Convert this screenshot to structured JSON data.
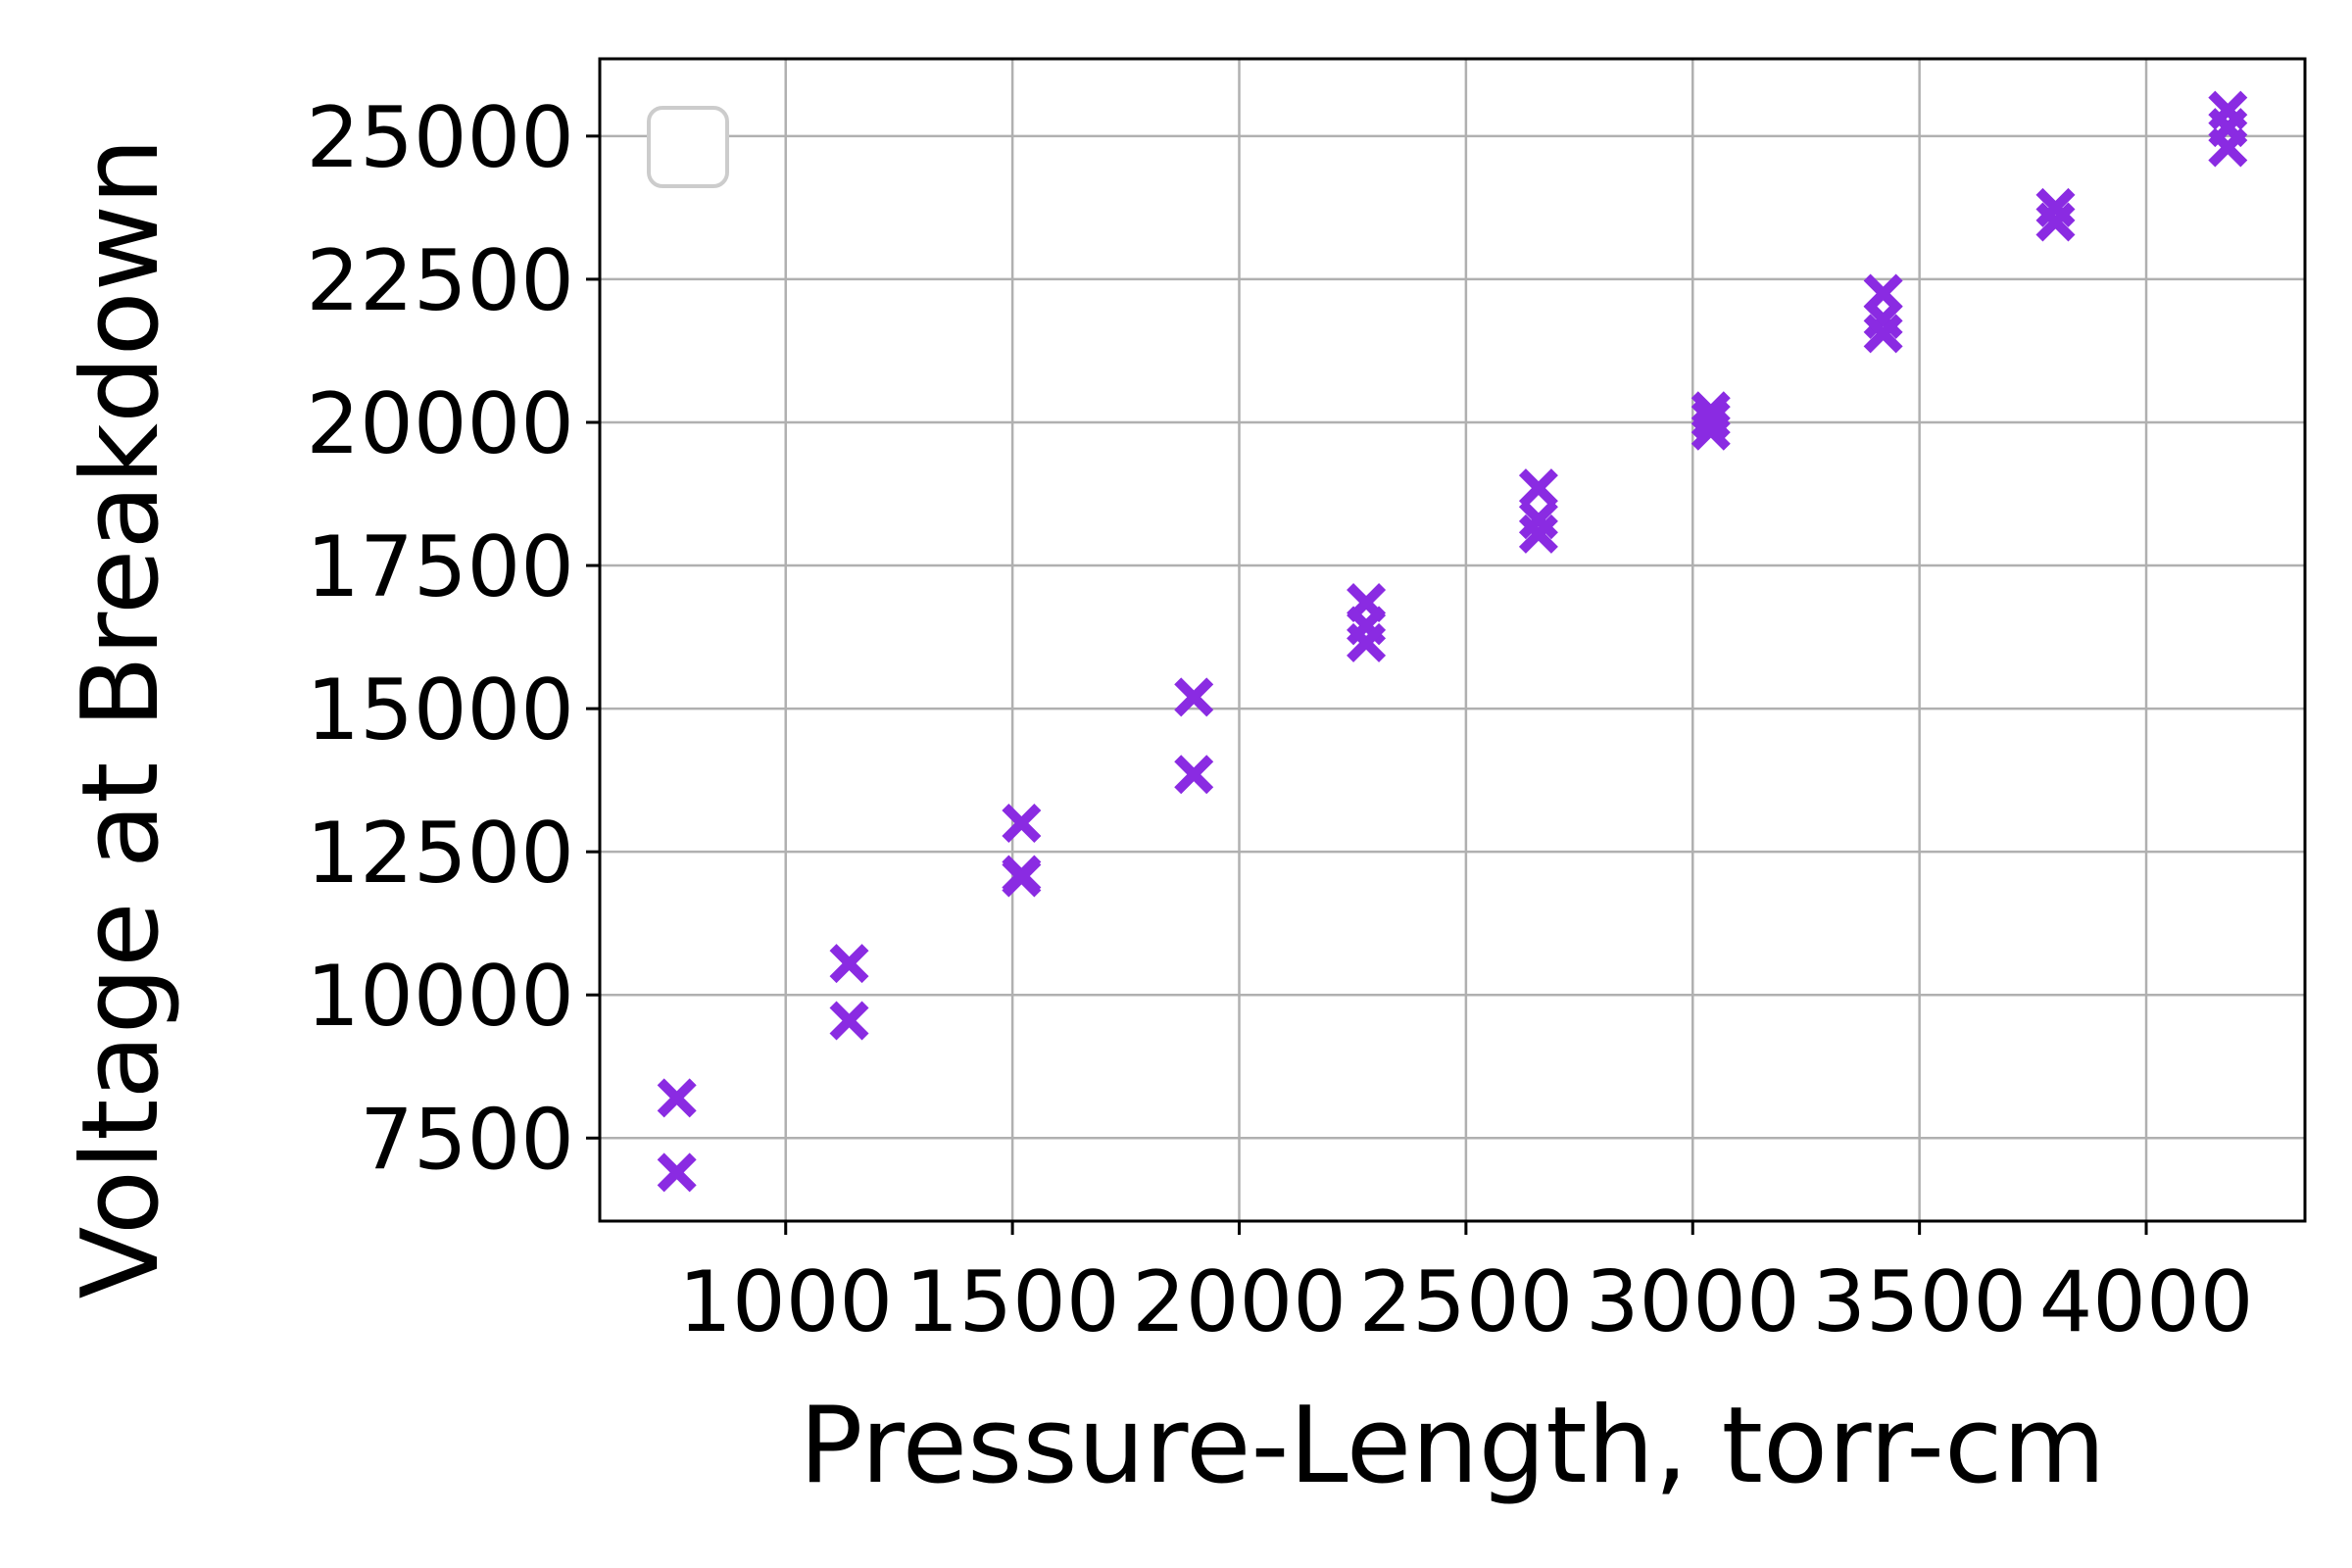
{
  "chart_data": {
    "type": "scatter",
    "title": "",
    "xlabel": "Pressure-Length, torr-cm",
    "ylabel": "Voltage at Breakdown",
    "xlim": [
      590,
      4350
    ],
    "ylim": [
      6050,
      26350
    ],
    "xticks": [
      1000,
      1500,
      2000,
      2500,
      3000,
      3500,
      4000
    ],
    "yticks": [
      7500,
      10000,
      12500,
      15000,
      17500,
      20000,
      22500,
      25000
    ],
    "grid": true,
    "legend": {
      "placement": "top-left",
      "entries": []
    },
    "marker": "X",
    "colors": {
      "marker": "#8A2BE2",
      "grid": "#b0b0b0",
      "axes": "#000000",
      "legend_border": "#cccccc"
    },
    "series": [
      {
        "x": [
          760,
          760,
          1140,
          1140,
          1520,
          1520,
          1520,
          1900,
          1900,
          2280,
          2280,
          2280,
          2660,
          2660,
          2660,
          3040,
          3040,
          3040,
          3420,
          3420,
          3420,
          3800,
          3800,
          4180,
          4180,
          4180
        ],
        "y": [
          8200,
          6900,
          10550,
          9550,
          13000,
          12100,
          12050,
          15200,
          13850,
          16850,
          16450,
          16150,
          18850,
          18300,
          18050,
          20200,
          20050,
          19850,
          22250,
          21800,
          21550,
          23750,
          23500,
          25450,
          25150,
          24800
        ]
      }
    ]
  }
}
